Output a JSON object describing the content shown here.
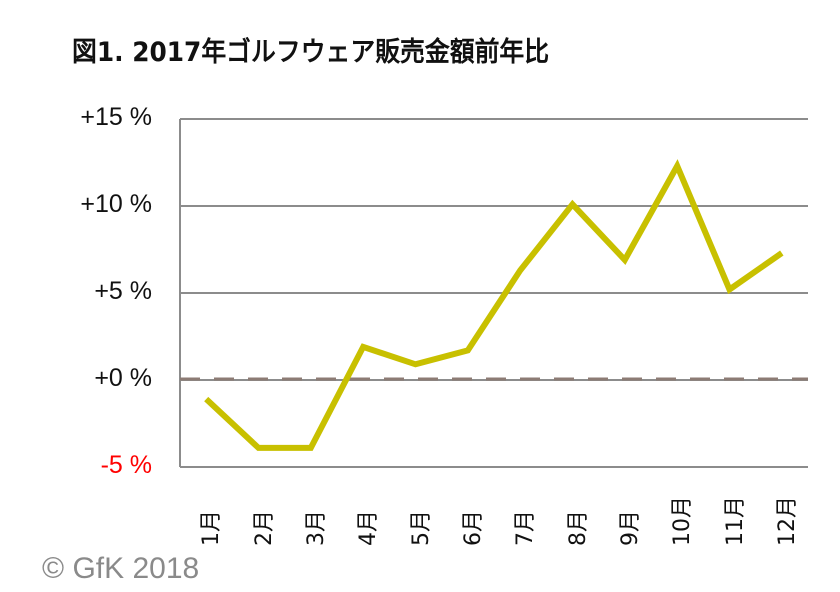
{
  "title": "図1. 2017年ゴルフウェア販売金額前年比",
  "footer": "© GfK 2018",
  "colors": {
    "line": "#c8c000",
    "grid": "#8c8c8c",
    "zero_line": "#8c7b74",
    "negative_label": "#ff0000"
  },
  "yaxis": {
    "ticks": [
      {
        "label": "+15 %",
        "value": 15
      },
      {
        "label": "+10 %",
        "value": 10
      },
      {
        "label": "+5 %",
        "value": 5
      },
      {
        "label": "+0 %",
        "value": 0
      },
      {
        "label": "-5 %",
        "value": -5
      }
    ]
  },
  "chart_data": {
    "type": "line",
    "title": "図1. 2017年ゴルフウェア販売金額前年比",
    "xlabel": "",
    "ylabel": "",
    "categories": [
      "1月",
      "2月",
      "3月",
      "4月",
      "5月",
      "6月",
      "7月",
      "8月",
      "9月",
      "10月",
      "11月",
      "12月"
    ],
    "series": [
      {
        "name": "ゴルフウェア販売金額前年比",
        "values": [
          -1.1,
          -3.9,
          -3.9,
          1.9,
          0.9,
          1.7,
          6.3,
          10.1,
          6.9,
          12.3,
          5.2,
          7.3
        ]
      }
    ],
    "ylim": [
      -5,
      15
    ],
    "yticks": [
      "+15 %",
      "+10 %",
      "+5 %",
      "+0 %",
      "-5 %"
    ],
    "grid": true,
    "legend": null,
    "annotations": [
      "© GfK 2018"
    ]
  }
}
